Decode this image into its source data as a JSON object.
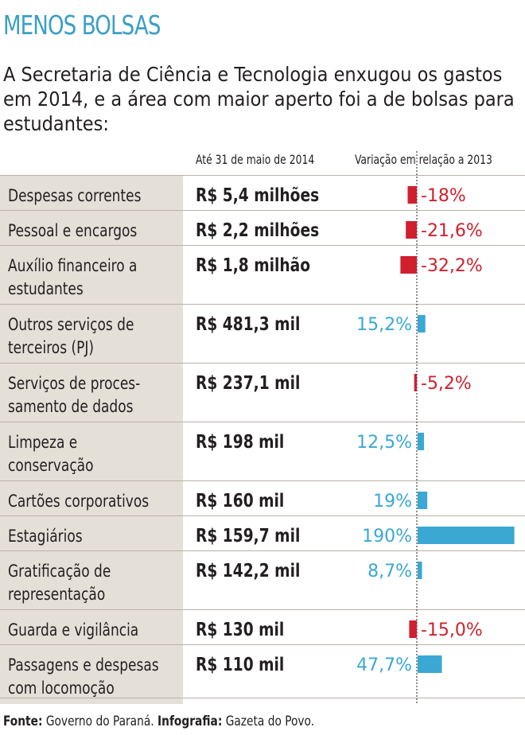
{
  "chart_data": {
    "type": "table",
    "title": "MENOS BOLSAS",
    "subtitle": "A Secretaria de Ciência e Tecnologia enxugou os gastos em 2014, e a área com maior aperto foi a de bolsas para estudantes:",
    "columns": [
      "Até 31 de maio de 2014",
      "Variação em relação a 2013"
    ],
    "rows": [
      {
        "lines": [
          "Despesas correntes"
        ],
        "value": "R$ 5,4 milhões",
        "variation": -18,
        "label": "-18%"
      },
      {
        "lines": [
          "Pessoal e encargos"
        ],
        "value": "R$ 2,2 milhões",
        "variation": -21.6,
        "label": "-21,6%"
      },
      {
        "lines": [
          "Auxílio financeiro a",
          "estudantes"
        ],
        "value": "R$ 1,8 milhão",
        "variation": -32.2,
        "label": "-32,2%"
      },
      {
        "lines": [
          "Outros serviços de",
          "terceiros (PJ)"
        ],
        "value": "R$ 481,3 mil",
        "variation": 15.2,
        "label": "15,2%"
      },
      {
        "lines": [
          "Serviços de proces-",
          "samento de dados"
        ],
        "value": "R$ 237,1 mil",
        "variation": -5.2,
        "label": "-5,2%"
      },
      {
        "lines": [
          "Limpeza e",
          "conservação"
        ],
        "value": "R$ 198 mil",
        "variation": 12.5,
        "label": "12,5%"
      },
      {
        "lines": [
          "Cartões corporativos"
        ],
        "value": "R$ 160 mil",
        "variation": 19,
        "label": "19%"
      },
      {
        "lines": [
          "Estagiários"
        ],
        "value": "R$ 159,7 mil",
        "variation": 190,
        "label": "190%"
      },
      {
        "lines": [
          "Gratificação de",
          "representação"
        ],
        "value": "R$ 142,2 mil",
        "variation": 8.7,
        "label": "8,7%"
      },
      {
        "lines": [
          "Guarda e vigilância"
        ],
        "value": "R$ 130 mil",
        "variation": -15.0,
        "label": "-15,0%"
      },
      {
        "lines": [
          "Passagens e despesas",
          "com locomoção"
        ],
        "value": "R$ 110 mil",
        "variation": 47.7,
        "label": "47,7%"
      }
    ],
    "colors": {
      "negative": "#d0202e",
      "positive": "#3aa8d3",
      "title": "#3a9fc6",
      "label_bg": "#e4dfd7"
    }
  },
  "source": {
    "source_label": "Fonte:",
    "source_text": "Governo do Paraná.",
    "credit_label": "Infografia:",
    "credit_text": "Gazeta do Povo."
  }
}
